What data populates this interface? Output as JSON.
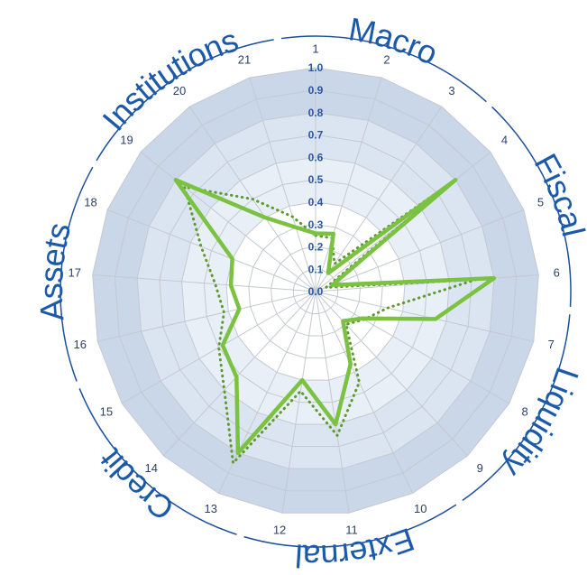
{
  "chart_data": {
    "type": "radar",
    "categories": [
      "1",
      "2",
      "3",
      "4",
      "5",
      "6",
      "7",
      "8",
      "9",
      "10",
      "11",
      "12",
      "13",
      "14",
      "15",
      "16",
      "17",
      "18",
      "19",
      "20",
      "21"
    ],
    "groups": [
      "Macro",
      "Fiscal",
      "Liquidity",
      "External",
      "Credit",
      "Assets",
      "Institutions"
    ],
    "rlim": [
      0,
      1
    ],
    "rticks": [
      {
        "value": 0,
        "label": "0.0"
      },
      0.1,
      0.2,
      0.3,
      0.4,
      0.5,
      0.6,
      0.7,
      0.8,
      0.9,
      {
        "value": 1,
        "label": "1.0"
      }
    ],
    "bands": [
      {
        "range": [
          0.8,
          1.0
        ],
        "color": "#c9d7e9"
      },
      {
        "range": [
          0.6,
          0.8
        ],
        "color": "#dbe5f1"
      },
      {
        "range": [
          0.4,
          0.6
        ],
        "color": "#e9eff7"
      }
    ],
    "grid": true,
    "series": [
      {
        "color": "#5e9a2e",
        "style": "dotted",
        "values": [
          0.25,
          0.25,
          0.15,
          0.8,
          0.05,
          0.72,
          0.33,
          0.25,
          0.2,
          0.45,
          0.65,
          0.45,
          0.85,
          0.6,
          0.5,
          0.42,
          0.45,
          0.55,
          0.75,
          0.5,
          0.35
        ]
      },
      {
        "color": "#7cc242",
        "style": "solid",
        "values": [
          0.26,
          0.27,
          0.1,
          0.8,
          0.08,
          0.8,
          0.55,
          0.24,
          0.18,
          0.36,
          0.6,
          0.4,
          0.8,
          0.52,
          0.48,
          0.35,
          0.38,
          0.4,
          0.8,
          0.4,
          0.3
        ]
      }
    ]
  }
}
